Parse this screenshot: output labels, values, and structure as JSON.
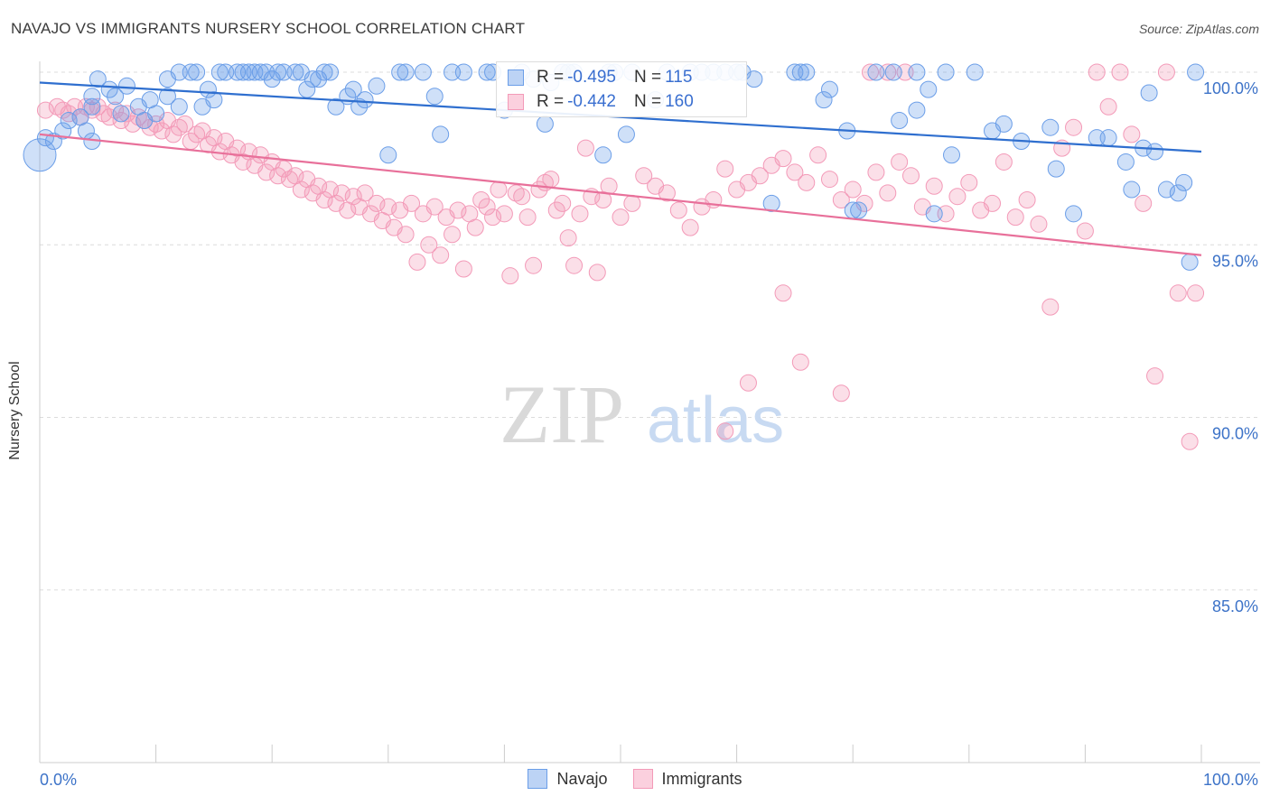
{
  "title": "NAVAJO VS IMMIGRANTS NURSERY SCHOOL CORRELATION CHART",
  "source": "Source: ZipAtlas.com",
  "watermark": {
    "zip": "ZIP",
    "atlas": "atlas"
  },
  "legend": {
    "rows": [
      {
        "r_label": "R =",
        "r_value": "-0.495",
        "n_label": "N =",
        "n_value": "115"
      },
      {
        "r_label": "R =",
        "r_value": "-0.442",
        "n_label": "N =",
        "n_value": "160"
      }
    ]
  },
  "colors": {
    "navajo": "#6b9ee8",
    "navajo_line": "#2f6fcf",
    "immigrants": "#f39ab8",
    "immigrants_line": "#e8709a",
    "axis_text": "#3d73c8"
  },
  "chart_data": {
    "type": "scatter",
    "title": "NAVAJO VS IMMIGRANTS NURSERY SCHOOL CORRELATION CHART",
    "xlabel": "",
    "ylabel": "Nursery School",
    "xlim": [
      0,
      100
    ],
    "ylim": [
      80.5,
      100.8
    ],
    "x_tick_labels": [
      "0.0%",
      "100.0%"
    ],
    "y_ticks": [
      100,
      95,
      90,
      85
    ],
    "y_tick_labels": [
      "100.0%",
      "95.0%",
      "90.0%",
      "85.0%"
    ],
    "grid": "horizontal dashed",
    "legend_position": "top-center",
    "series": [
      {
        "name": "Navajo",
        "color": "#6b9ee8",
        "trend": {
          "x": [
            0,
            100
          ],
          "y": [
            99.7,
            97.7
          ]
        },
        "points": [
          [
            0,
            97.6
          ],
          [
            0.5,
            98.1
          ],
          [
            1.2,
            98.0
          ],
          [
            2.0,
            98.3
          ],
          [
            2.5,
            98.6
          ],
          [
            3.5,
            98.7
          ],
          [
            4.0,
            98.3
          ],
          [
            4.5,
            98.0
          ],
          [
            4.5,
            99.0
          ],
          [
            4.5,
            99.3
          ],
          [
            5.0,
            99.8
          ],
          [
            6.0,
            99.5
          ],
          [
            6.5,
            99.3
          ],
          [
            7.0,
            98.8
          ],
          [
            7.5,
            99.6
          ],
          [
            8.5,
            99.0
          ],
          [
            9.0,
            98.6
          ],
          [
            9.5,
            99.2
          ],
          [
            10.0,
            98.8
          ],
          [
            11.0,
            99.3
          ],
          [
            11.0,
            99.8
          ],
          [
            12.0,
            100.0
          ],
          [
            12.0,
            99.0
          ],
          [
            13.0,
            100.0
          ],
          [
            13.5,
            100.0
          ],
          [
            14.0,
            99.0
          ],
          [
            14.5,
            99.5
          ],
          [
            15.0,
            99.2
          ],
          [
            15.5,
            100.0
          ],
          [
            16.0,
            100.0
          ],
          [
            17.0,
            100.0
          ],
          [
            17.5,
            100.0
          ],
          [
            18.0,
            100.0
          ],
          [
            18.5,
            100.0
          ],
          [
            19.0,
            100.0
          ],
          [
            19.5,
            100.0
          ],
          [
            20.0,
            99.8
          ],
          [
            20.5,
            100.0
          ],
          [
            21.0,
            100.0
          ],
          [
            22.0,
            100.0
          ],
          [
            22.5,
            100.0
          ],
          [
            23.0,
            99.5
          ],
          [
            23.5,
            99.8
          ],
          [
            24.0,
            99.8
          ],
          [
            24.5,
            100.0
          ],
          [
            25.0,
            100.0
          ],
          [
            25.5,
            99.0
          ],
          [
            26.5,
            99.3
          ],
          [
            27.0,
            99.5
          ],
          [
            27.5,
            99.0
          ],
          [
            28.0,
            99.2
          ],
          [
            29.0,
            99.6
          ],
          [
            30.0,
            97.6
          ],
          [
            31.0,
            100.0
          ],
          [
            31.5,
            100.0
          ],
          [
            33.0,
            100.0
          ],
          [
            34.0,
            99.3
          ],
          [
            34.5,
            98.2
          ],
          [
            35.5,
            100.0
          ],
          [
            36.5,
            100.0
          ],
          [
            38.5,
            100.0
          ],
          [
            39.0,
            100.0
          ],
          [
            40.0,
            98.9
          ],
          [
            41.5,
            100.0
          ],
          [
            42.5,
            99.8
          ],
          [
            43.5,
            98.5
          ],
          [
            44.0,
            99.7
          ],
          [
            45.0,
            100.0
          ],
          [
            45.5,
            100.0
          ],
          [
            46.0,
            100.0
          ],
          [
            48.5,
            97.6
          ],
          [
            49.0,
            100.0
          ],
          [
            49.5,
            100.0
          ],
          [
            50.5,
            98.2
          ],
          [
            51.0,
            100.0
          ],
          [
            53.0,
            99.2
          ],
          [
            54.0,
            100.0
          ],
          [
            56.0,
            100.0
          ],
          [
            57.0,
            100.0
          ],
          [
            58.0,
            100.0
          ],
          [
            59.0,
            100.0
          ],
          [
            60.0,
            100.0
          ],
          [
            60.5,
            100.0
          ],
          [
            61.5,
            99.8
          ],
          [
            63.0,
            96.2
          ],
          [
            65.0,
            100.0
          ],
          [
            65.5,
            100.0
          ],
          [
            66.0,
            100.0
          ],
          [
            67.5,
            99.2
          ],
          [
            68.0,
            99.5
          ],
          [
            69.5,
            98.3
          ],
          [
            70.0,
            96.0
          ],
          [
            70.5,
            96.0
          ],
          [
            72.0,
            100.0
          ],
          [
            73.5,
            100.0
          ],
          [
            74.0,
            98.6
          ],
          [
            75.5,
            100.0
          ],
          [
            75.5,
            98.9
          ],
          [
            76.5,
            99.5
          ],
          [
            77.0,
            95.9
          ],
          [
            78.0,
            100.0
          ],
          [
            78.5,
            97.6
          ],
          [
            80.5,
            100.0
          ],
          [
            82.0,
            98.3
          ],
          [
            83.0,
            98.5
          ],
          [
            84.5,
            98.0
          ],
          [
            87.0,
            98.4
          ],
          [
            87.5,
            97.2
          ],
          [
            89.0,
            95.9
          ],
          [
            91.0,
            98.1
          ],
          [
            92.0,
            98.1
          ],
          [
            93.5,
            97.4
          ],
          [
            94.0,
            96.6
          ],
          [
            95.0,
            97.8
          ],
          [
            95.5,
            99.4
          ],
          [
            96.0,
            97.7
          ],
          [
            97.0,
            96.6
          ],
          [
            98.0,
            96.5
          ],
          [
            98.5,
            96.8
          ],
          [
            99.0,
            94.5
          ],
          [
            99.5,
            100.0
          ]
        ]
      },
      {
        "name": "Immigrants",
        "color": "#f39ab8",
        "trend": {
          "x": [
            0,
            100
          ],
          "y": [
            98.2,
            94.7
          ]
        },
        "points": [
          [
            0.5,
            98.9
          ],
          [
            1.5,
            99.0
          ],
          [
            2.0,
            98.9
          ],
          [
            2.5,
            98.8
          ],
          [
            3.0,
            99.0
          ],
          [
            3.5,
            98.7
          ],
          [
            4.0,
            99.0
          ],
          [
            4.5,
            98.9
          ],
          [
            5.0,
            99.0
          ],
          [
            5.5,
            98.8
          ],
          [
            6.0,
            98.7
          ],
          [
            6.5,
            98.9
          ],
          [
            7.0,
            98.6
          ],
          [
            7.5,
            98.8
          ],
          [
            8.0,
            98.5
          ],
          [
            8.5,
            98.7
          ],
          [
            9.0,
            98.6
          ],
          [
            9.5,
            98.4
          ],
          [
            10.0,
            98.5
          ],
          [
            10.5,
            98.3
          ],
          [
            11.0,
            98.6
          ],
          [
            11.5,
            98.2
          ],
          [
            12.0,
            98.4
          ],
          [
            12.5,
            98.5
          ],
          [
            13.0,
            98.0
          ],
          [
            13.5,
            98.2
          ],
          [
            14.0,
            98.3
          ],
          [
            14.5,
            97.9
          ],
          [
            15.0,
            98.1
          ],
          [
            15.5,
            97.7
          ],
          [
            16.0,
            98.0
          ],
          [
            16.5,
            97.6
          ],
          [
            17.0,
            97.8
          ],
          [
            17.5,
            97.4
          ],
          [
            18.0,
            97.7
          ],
          [
            18.5,
            97.3
          ],
          [
            19.0,
            97.6
          ],
          [
            19.5,
            97.1
          ],
          [
            20.0,
            97.4
          ],
          [
            20.5,
            97.0
          ],
          [
            21.0,
            97.2
          ],
          [
            21.5,
            96.9
          ],
          [
            22.0,
            97.0
          ],
          [
            22.5,
            96.6
          ],
          [
            23.0,
            96.9
          ],
          [
            23.5,
            96.5
          ],
          [
            24.0,
            96.7
          ],
          [
            24.5,
            96.3
          ],
          [
            25.0,
            96.6
          ],
          [
            25.5,
            96.2
          ],
          [
            26.0,
            96.5
          ],
          [
            26.5,
            96.0
          ],
          [
            27.0,
            96.4
          ],
          [
            27.5,
            96.1
          ],
          [
            28.0,
            96.5
          ],
          [
            28.5,
            95.9
          ],
          [
            29.0,
            96.2
          ],
          [
            29.5,
            95.7
          ],
          [
            30.0,
            96.1
          ],
          [
            30.5,
            95.5
          ],
          [
            31.0,
            96.0
          ],
          [
            31.5,
            95.3
          ],
          [
            32.0,
            96.2
          ],
          [
            32.5,
            94.5
          ],
          [
            33.0,
            95.9
          ],
          [
            33.5,
            95.0
          ],
          [
            34.0,
            96.1
          ],
          [
            34.5,
            94.7
          ],
          [
            35.0,
            95.8
          ],
          [
            35.5,
            95.3
          ],
          [
            36.0,
            96.0
          ],
          [
            36.5,
            94.3
          ],
          [
            37.0,
            95.9
          ],
          [
            37.5,
            95.5
          ],
          [
            38.0,
            96.3
          ],
          [
            38.5,
            96.1
          ],
          [
            39.0,
            95.8
          ],
          [
            39.5,
            96.6
          ],
          [
            40.0,
            95.9
          ],
          [
            40.5,
            94.1
          ],
          [
            41.0,
            96.5
          ],
          [
            41.5,
            96.4
          ],
          [
            42.0,
            95.8
          ],
          [
            42.5,
            94.4
          ],
          [
            43.0,
            96.6
          ],
          [
            43.5,
            96.8
          ],
          [
            44.0,
            96.9
          ],
          [
            44.5,
            96.0
          ],
          [
            45.0,
            96.2
          ],
          [
            45.5,
            95.2
          ],
          [
            46.0,
            94.4
          ],
          [
            46.5,
            95.9
          ],
          [
            47.0,
            97.8
          ],
          [
            47.5,
            96.4
          ],
          [
            48.0,
            94.2
          ],
          [
            48.5,
            96.3
          ],
          [
            49.0,
            96.7
          ],
          [
            50.0,
            95.8
          ],
          [
            51.0,
            96.2
          ],
          [
            52.0,
            97.0
          ],
          [
            53.0,
            96.7
          ],
          [
            54.0,
            96.5
          ],
          [
            55.0,
            96.0
          ],
          [
            56.0,
            95.5
          ],
          [
            57.0,
            96.1
          ],
          [
            58.0,
            96.3
          ],
          [
            59.0,
            97.2
          ],
          [
            60.0,
            96.6
          ],
          [
            61.0,
            96.8
          ],
          [
            62.0,
            97.0
          ],
          [
            63.0,
            97.3
          ],
          [
            64.0,
            97.5
          ],
          [
            65.0,
            97.1
          ],
          [
            66.0,
            96.8
          ],
          [
            67.0,
            97.6
          ],
          [
            68.0,
            96.9
          ],
          [
            69.0,
            96.3
          ],
          [
            70.0,
            96.6
          ],
          [
            71.0,
            96.2
          ],
          [
            72.0,
            97.1
          ],
          [
            73.0,
            96.5
          ],
          [
            74.0,
            97.4
          ],
          [
            75.0,
            97.0
          ],
          [
            76.0,
            96.1
          ],
          [
            77.0,
            96.7
          ],
          [
            78.0,
            95.9
          ],
          [
            79.0,
            96.4
          ],
          [
            80.0,
            96.8
          ],
          [
            81.0,
            96.0
          ],
          [
            82.0,
            96.2
          ],
          [
            83.0,
            97.4
          ],
          [
            84.0,
            95.8
          ],
          [
            85.0,
            96.3
          ],
          [
            86.0,
            95.6
          ],
          [
            87.0,
            93.2
          ],
          [
            88.0,
            97.8
          ],
          [
            89.0,
            98.4
          ],
          [
            90.0,
            95.4
          ],
          [
            91.0,
            100.0
          ],
          [
            92.0,
            99.0
          ],
          [
            93.0,
            100.0
          ],
          [
            94.0,
            98.2
          ],
          [
            95.0,
            96.2
          ],
          [
            96.0,
            91.2
          ],
          [
            97.0,
            100.0
          ],
          [
            98.0,
            93.6
          ],
          [
            99.0,
            89.3
          ],
          [
            99.5,
            93.6
          ],
          [
            61.0,
            91.0
          ],
          [
            59.0,
            89.6
          ],
          [
            64.0,
            93.6
          ],
          [
            65.5,
            91.6
          ],
          [
            69.0,
            90.7
          ],
          [
            71.5,
            100.0
          ],
          [
            73.0,
            100.0
          ],
          [
            74.5,
            100.0
          ]
        ]
      }
    ]
  }
}
